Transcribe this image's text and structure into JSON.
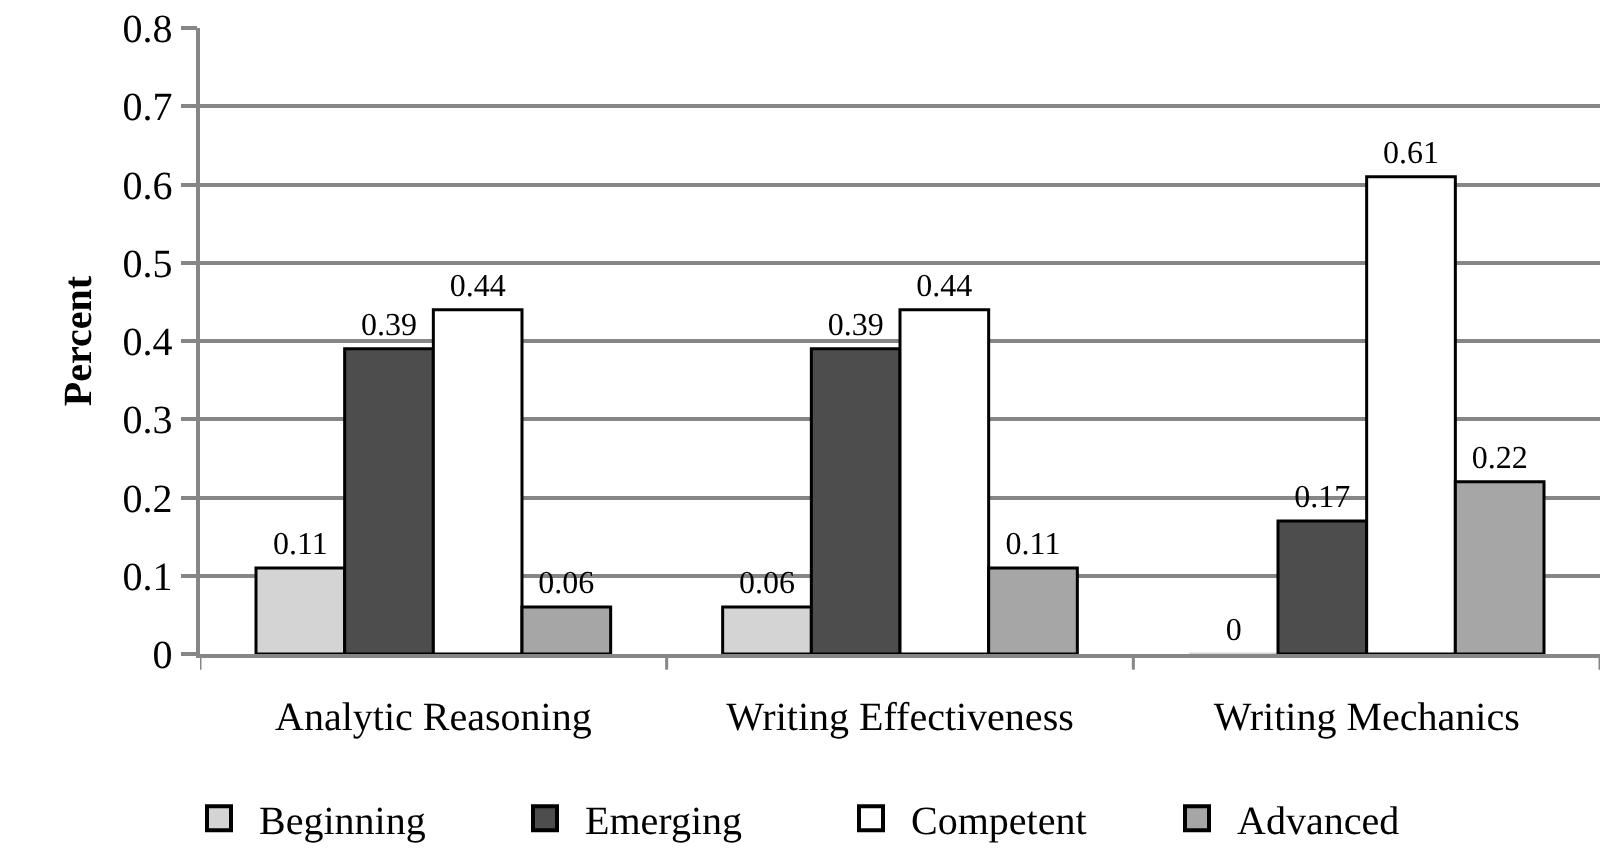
{
  "chart_data": {
    "type": "bar",
    "ylabel": "Percent",
    "categories": [
      "Analytic Reasoning",
      "Writing Effectiveness",
      "Writing Mechanics"
    ],
    "series": [
      {
        "name": "Beginning",
        "color": "#d4d4d4",
        "values": [
          0.11,
          0.06,
          0
        ]
      },
      {
        "name": "Emerging",
        "color": "#4d4d4d",
        "values": [
          0.39,
          0.39,
          0.17
        ]
      },
      {
        "name": "Competent",
        "color": "#ffffff",
        "values": [
          0.44,
          0.44,
          0.61
        ]
      },
      {
        "name": "Advanced",
        "color": "#a6a6a6",
        "values": [
          0.06,
          0.11,
          0.22
        ]
      }
    ],
    "ylim": [
      0,
      0.8
    ],
    "yticks": [
      0,
      0.1,
      0.2,
      0.3,
      0.4,
      0.5,
      0.6,
      0.7,
      0.8
    ],
    "grid": "y",
    "legend": "bottom",
    "data_labels": true
  }
}
